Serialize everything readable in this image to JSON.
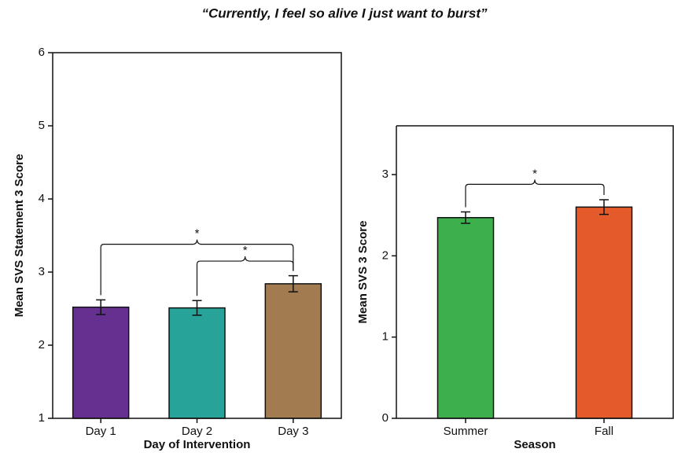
{
  "title": "“Currently, I feel so alive I just want to burst”",
  "chart_data": [
    {
      "type": "bar",
      "xlabel": "Day of Intervention",
      "ylabel": "Mean SVS Statement 3 Score",
      "categories": [
        "Day 1",
        "Day 2",
        "Day 3"
      ],
      "values": [
        2.52,
        2.51,
        2.84
      ],
      "errors": [
        0.1,
        0.1,
        0.11
      ],
      "colors": [
        "#653090",
        "#27a39a",
        "#a27b50"
      ],
      "ylim": [
        1,
        6
      ],
      "yticks": [
        1,
        2,
        3,
        4,
        5,
        6
      ],
      "annotations": [
        {
          "label": "*",
          "between": [
            "Day 1",
            "Day 3"
          ],
          "y": 3.38
        },
        {
          "label": "*",
          "between": [
            "Day 2",
            "Day 3"
          ],
          "y": 3.15
        }
      ]
    },
    {
      "type": "bar",
      "xlabel": "Season",
      "ylabel": "Mean SVS 3 Score",
      "categories": [
        "Summer",
        "Fall"
      ],
      "values": [
        2.47,
        2.6
      ],
      "errors": [
        0.07,
        0.09
      ],
      "colors": [
        "#3db04d",
        "#e45a2b"
      ],
      "ylim": [
        0,
        3.6
      ],
      "yticks": [
        0,
        1,
        2,
        3
      ],
      "annotations": [
        {
          "label": "*",
          "between": [
            "Summer",
            "Fall"
          ],
          "y": 2.88
        }
      ]
    }
  ]
}
